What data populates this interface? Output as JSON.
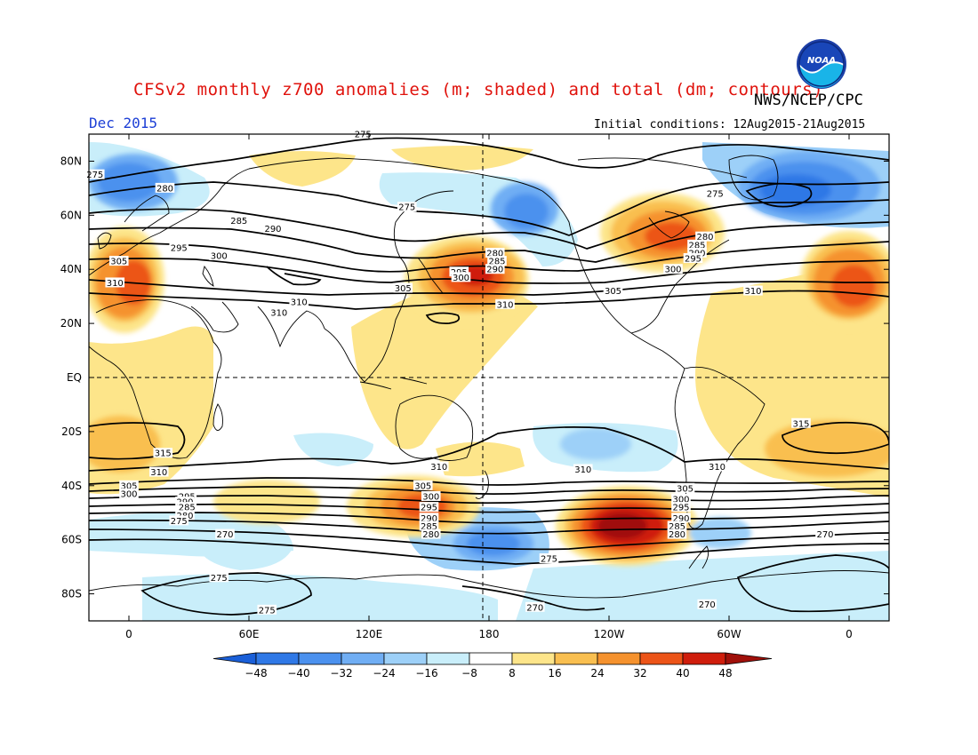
{
  "title": "CFSv2 monthly z700 anomalies (m; shaded) and total (dm; contours)",
  "valid_month": "Dec 2015",
  "agency": "NWS/NCEP/CPC",
  "initial_conditions": "Initial conditions: 12Aug2015-21Aug2015",
  "logo_text": "NOAA",
  "map": {
    "projection": "cylindrical-equidistant",
    "lon_range": [
      -20,
      380
    ],
    "lat_range": [
      -90,
      90
    ],
    "lat_labels": [
      "80N",
      "60N",
      "40N",
      "20N",
      "EQ",
      "20S",
      "40S",
      "60S",
      "80S"
    ],
    "lon_labels": [
      "0",
      "60E",
      "120E",
      "180",
      "120W",
      "60W",
      "0"
    ],
    "reference_lines": {
      "equator": true,
      "dateline": true,
      "style": "dashed"
    }
  },
  "colorbar": {
    "ticks": [
      "-48",
      "-40",
      "-32",
      "-24",
      "-16",
      "-8",
      "8",
      "16",
      "24",
      "32",
      "40",
      "48"
    ],
    "colors": [
      "#1a5fd8",
      "#2f78e6",
      "#4b91ee",
      "#70aef4",
      "#9dd0f8",
      "#c9eefa",
      "#ffffff",
      "#fde58a",
      "#f9bf50",
      "#f5922e",
      "#ec5418",
      "#cf1d0c",
      "#a0100a"
    ]
  },
  "anomaly_features": [
    {
      "sign": "positive",
      "peak_m": 40,
      "region": "North Pacific 40N 170E",
      "lon": 165,
      "lat": 38
    },
    {
      "sign": "positive",
      "peak_m": 32,
      "region": "NE Canada / Hudson Bay",
      "lon": 280,
      "lat": 50
    },
    {
      "sign": "positive",
      "peak_m": 32,
      "region": "Mediterranean / NE Atlantic",
      "lon": 10,
      "lat": 38
    },
    {
      "sign": "positive",
      "peak_m": 48,
      "region": "South Pacific 55S 130W",
      "lon": 225,
      "lat": -55
    },
    {
      "sign": "positive",
      "peak_m": 32,
      "region": "South of Australia",
      "lon": 150,
      "lat": -52
    },
    {
      "sign": "negative",
      "peak_m": -32,
      "region": "North Atlantic / Greenland",
      "lon": 325,
      "lat": 63
    },
    {
      "sign": "negative",
      "peak_m": -24,
      "region": "Alaska / Bering",
      "lon": 195,
      "lat": 62
    },
    {
      "sign": "negative",
      "peak_m": -24,
      "region": "North Europe",
      "lon": 5,
      "lat": 68
    },
    {
      "sign": "negative",
      "peak_m": -24,
      "region": "Southern Ocean 180",
      "lon": 190,
      "lat": -60
    },
    {
      "sign": "negative",
      "peak_m": -16,
      "region": "South Indian Ocean",
      "lon": 65,
      "lat": -58
    }
  ],
  "contour_labels": [
    {
      "text": "275",
      "lon": -17,
      "lat": 75
    },
    {
      "text": "280",
      "lon": 18,
      "lat": 70
    },
    {
      "text": "285",
      "lon": 55,
      "lat": 58
    },
    {
      "text": "290",
      "lon": 72,
      "lat": 55
    },
    {
      "text": "295",
      "lon": 25,
      "lat": 48
    },
    {
      "text": "300",
      "lon": 45,
      "lat": 45
    },
    {
      "text": "305",
      "lon": -5,
      "lat": 43
    },
    {
      "text": "310",
      "lon": -7,
      "lat": 35
    },
    {
      "text": "305",
      "lon": 137,
      "lat": 33
    },
    {
      "text": "310",
      "lon": 85,
      "lat": 28
    },
    {
      "text": "310",
      "lon": 75,
      "lat": 24
    },
    {
      "text": "275",
      "lon": 139,
      "lat": 63
    },
    {
      "text": "280",
      "lon": 183,
      "lat": 46
    },
    {
      "text": "285",
      "lon": 184,
      "lat": 43
    },
    {
      "text": "290",
      "lon": 183,
      "lat": 40
    },
    {
      "text": "295",
      "lon": 165,
      "lat": 39
    },
    {
      "text": "300",
      "lon": 166,
      "lat": 37
    },
    {
      "text": "310",
      "lon": 188,
      "lat": 27
    },
    {
      "text": "305",
      "lon": 242,
      "lat": 32
    },
    {
      "text": "275",
      "lon": 293,
      "lat": 68
    },
    {
      "text": "280",
      "lon": 288,
      "lat": 52
    },
    {
      "text": "285",
      "lon": 284,
      "lat": 49
    },
    {
      "text": "290",
      "lon": 284,
      "lat": 46
    },
    {
      "text": "295",
      "lon": 282,
      "lat": 44
    },
    {
      "text": "300",
      "lon": 272,
      "lat": 40
    },
    {
      "text": "310",
      "lon": 312,
      "lat": 32
    },
    {
      "text": "315",
      "lon": 336,
      "lat": -17
    },
    {
      "text": "315",
      "lon": 17,
      "lat": -28
    },
    {
      "text": "310",
      "lon": 15,
      "lat": -35
    },
    {
      "text": "310",
      "lon": 155,
      "lat": -33
    },
    {
      "text": "310",
      "lon": 227,
      "lat": -34
    },
    {
      "text": "310",
      "lon": 294,
      "lat": -33
    },
    {
      "text": "305",
      "lon": 0,
      "lat": -40
    },
    {
      "text": "300",
      "lon": 0,
      "lat": -43
    },
    {
      "text": "295",
      "lon": 29,
      "lat": -44
    },
    {
      "text": "290",
      "lon": 28,
      "lat": -46
    },
    {
      "text": "285",
      "lon": 29,
      "lat": -48
    },
    {
      "text": "280",
      "lon": 28,
      "lat": -51
    },
    {
      "text": "275",
      "lon": 25,
      "lat": -53
    },
    {
      "text": "305",
      "lon": 147,
      "lat": -40
    },
    {
      "text": "300",
      "lon": 151,
      "lat": -44
    },
    {
      "text": "295",
      "lon": 150,
      "lat": -48
    },
    {
      "text": "290",
      "lon": 150,
      "lat": -52
    },
    {
      "text": "285",
      "lon": 150,
      "lat": -55
    },
    {
      "text": "280",
      "lon": 151,
      "lat": -58
    },
    {
      "text": "305",
      "lon": 278,
      "lat": -41
    },
    {
      "text": "300",
      "lon": 276,
      "lat": -45
    },
    {
      "text": "295",
      "lon": 276,
      "lat": -48
    },
    {
      "text": "290",
      "lon": 276,
      "lat": -52
    },
    {
      "text": "285",
      "lon": 274,
      "lat": -55
    },
    {
      "text": "280",
      "lon": 274,
      "lat": -58
    },
    {
      "text": "270",
      "lon": 348,
      "lat": -58
    },
    {
      "text": "270",
      "lon": 48,
      "lat": -58
    },
    {
      "text": "275",
      "lon": 210,
      "lat": -67
    },
    {
      "text": "275",
      "lon": 45,
      "lat": -74
    },
    {
      "text": "275",
      "lon": 69,
      "lat": -86
    },
    {
      "text": "270",
      "lon": 203,
      "lat": -85
    },
    {
      "text": "270",
      "lon": 289,
      "lat": -84
    },
    {
      "text": "275",
      "lon": 117,
      "lat": 90
    }
  ]
}
